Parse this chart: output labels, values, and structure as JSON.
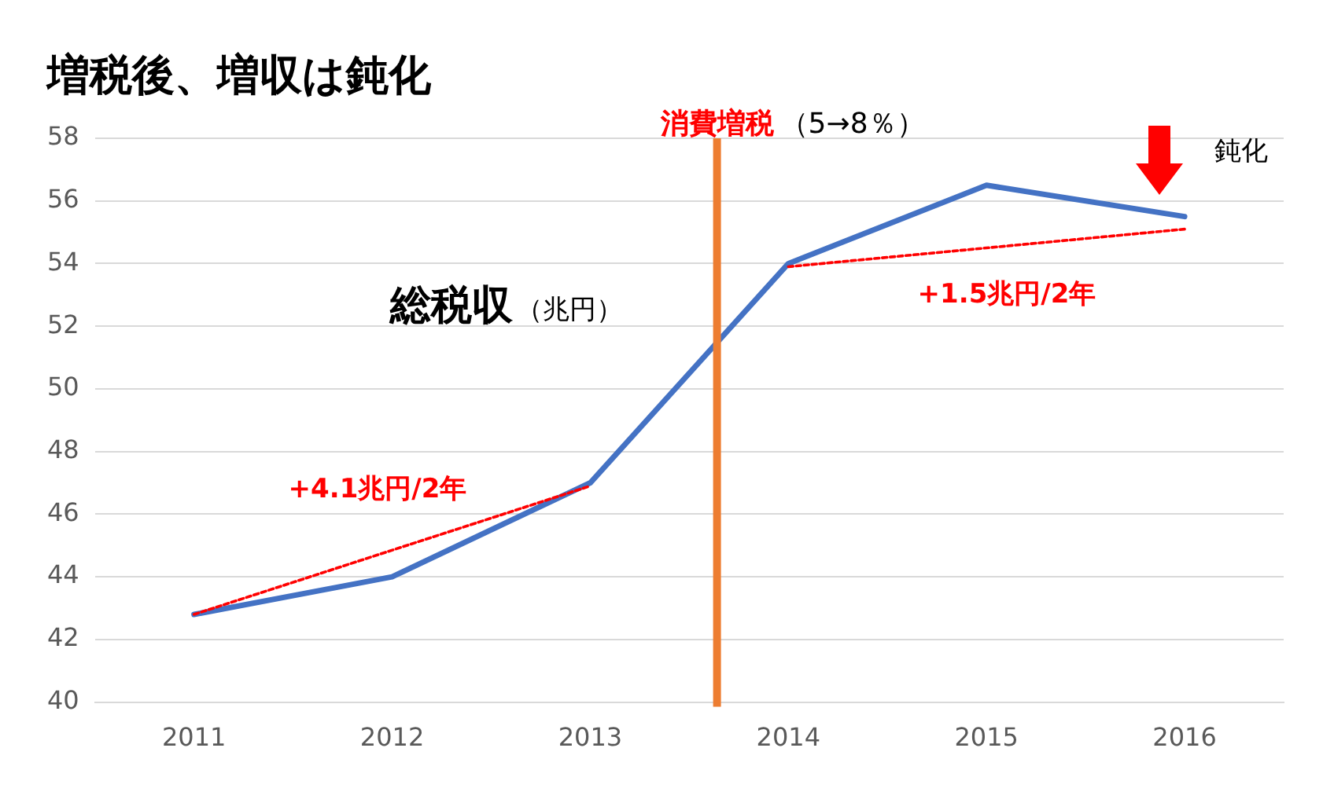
{
  "chart_data": {
    "type": "line",
    "title": "増税後、増収は鈍化",
    "x": [
      2011,
      2012,
      2013,
      2014,
      2015,
      2016
    ],
    "series": [
      {
        "color": "#4472c4",
        "values": [
          42.8,
          44.0,
          47.0,
          54.0,
          56.5,
          55.5
        ]
      },
      {
        "type": "line",
        "color": "#ff0000",
        "line_style": "dashed",
        "x": [
          2011,
          2013
        ],
        "values": [
          42.8,
          46.9
        ]
      },
      {
        "type": "line",
        "color": "#ff0000",
        "line_style": "dashed",
        "x": [
          2014,
          2016
        ],
        "values": [
          53.9,
          55.1
        ]
      }
    ],
    "xlim": [
      2010.5,
      2016.5
    ],
    "xticks": [
      2011,
      2012,
      2013,
      2014,
      2015,
      2016
    ],
    "ylim": [
      40,
      58
    ],
    "yticks": [
      40,
      42,
      44,
      46,
      48,
      50,
      52,
      54,
      56,
      58
    ],
    "grid": "y",
    "marker": "none",
    "line_style": "solid",
    "ref_lines": [
      {
        "axis": "x",
        "value": 2013.64,
        "label": "消費増税",
        "color": "#ed7d31"
      }
    ],
    "annotations": [
      "+4.1兆円/2年",
      "+1.5兆円/2年",
      "総税収",
      "（兆円）",
      "（5→8％）",
      "鈍化"
    ]
  }
}
